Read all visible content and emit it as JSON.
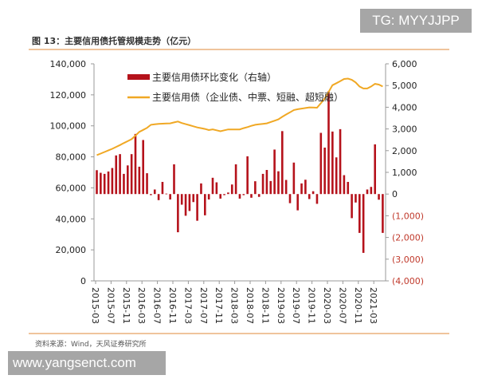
{
  "watermark_top": "TG: MYYJJPP",
  "watermark_bottom": "www.yangsenct.com",
  "source": "资料来源：Wind，天风证券研究所",
  "colors": {
    "bar": "#b5121b",
    "line": "#f0a824",
    "rule": "#e8a060",
    "negative_label": "#c0392b"
  },
  "chart_data": {
    "type": "bar+line",
    "title": "图 13：主要信用债托管规模走势（亿元）",
    "legend_placement": "top-left",
    "grid": false,
    "left_axis": {
      "ylim": [
        0,
        140000
      ],
      "ticks": [
        "0",
        "20,000",
        "40,000",
        "60,000",
        "80,000",
        "100,000",
        "120,000",
        "140,000"
      ],
      "tick_values": [
        0,
        20000,
        40000,
        60000,
        80000,
        100000,
        120000,
        140000
      ]
    },
    "right_axis": {
      "ylim": [
        -4000,
        6000
      ],
      "ticks": [
        "(4,000)",
        "(3,000)",
        "(2,000)",
        "(1,000)",
        "0",
        "1,000",
        "2,000",
        "3,000",
        "4,000",
        "5,000",
        "6,000"
      ],
      "tick_values": [
        -4000,
        -3000,
        -2000,
        -1000,
        0,
        1000,
        2000,
        3000,
        4000,
        5000,
        6000
      ]
    },
    "x_ticks": [
      "2015-03",
      "2015-07",
      "2015-11",
      "2016-03",
      "2016-07",
      "2016-11",
      "2017-03",
      "2017-07",
      "2017-11",
      "2018-03",
      "2018-07",
      "2018-11",
      "2019-03",
      "2019-07",
      "2019-11",
      "2020-03",
      "2020-07",
      "2020-11",
      "2021-03"
    ],
    "months": [
      "2015-03",
      "2015-04",
      "2015-05",
      "2015-06",
      "2015-07",
      "2015-08",
      "2015-09",
      "2015-10",
      "2015-11",
      "2015-12",
      "2016-01",
      "2016-02",
      "2016-03",
      "2016-04",
      "2016-05",
      "2016-06",
      "2016-07",
      "2016-08",
      "2016-09",
      "2016-10",
      "2016-11",
      "2016-12",
      "2017-01",
      "2017-02",
      "2017-03",
      "2017-04",
      "2017-05",
      "2017-06",
      "2017-07",
      "2017-08",
      "2017-09",
      "2017-10",
      "2017-11",
      "2017-12",
      "2018-01",
      "2018-02",
      "2018-03",
      "2018-04",
      "2018-05",
      "2018-06",
      "2018-07",
      "2018-08",
      "2018-09",
      "2018-10",
      "2018-11",
      "2018-12",
      "2019-01",
      "2019-02",
      "2019-03",
      "2019-04",
      "2019-05",
      "2019-06",
      "2019-07",
      "2019-08",
      "2019-09",
      "2019-10",
      "2019-11",
      "2019-12",
      "2020-01",
      "2020-02",
      "2020-03",
      "2020-04",
      "2020-05",
      "2020-06",
      "2020-07",
      "2020-08",
      "2020-09",
      "2020-10",
      "2020-11",
      "2020-12",
      "2021-01",
      "2021-02",
      "2021-03",
      "2021-04",
      "2021-05"
    ],
    "series": [
      {
        "name": "主要信用债环比变化（右轴）",
        "type": "bar",
        "axis": "right",
        "values": [
          1100,
          980,
          930,
          1040,
          1200,
          1780,
          1840,
          930,
          1320,
          1840,
          2770,
          1260,
          2490,
          960,
          -50,
          210,
          -280,
          560,
          20,
          -250,
          1370,
          -1760,
          -490,
          -1000,
          -780,
          -370,
          -1230,
          490,
          -980,
          -250,
          750,
          540,
          -210,
          -50,
          70,
          440,
          1370,
          -210,
          -50,
          1740,
          -170,
          590,
          -130,
          930,
          1110,
          600,
          2050,
          1050,
          2900,
          650,
          -420,
          1450,
          -750,
          490,
          660,
          -230,
          130,
          -450,
          2820,
          2140,
          4740,
          2880,
          1690,
          2990,
          870,
          560,
          -1110,
          -390,
          -1790,
          -2710,
          210,
          330,
          2290,
          -260,
          -1790
        ]
      },
      {
        "name": "主要信用债（企业债、中票、短融、超短融）",
        "type": "line",
        "axis": "left",
        "values": [
          81100,
          82100,
          83100,
          84200,
          85200,
          86400,
          87600,
          88900,
          90100,
          91400,
          93700,
          96100,
          97400,
          98700,
          100700,
          101000,
          101300,
          101400,
          101500,
          101600,
          102200,
          102800,
          101800,
          101100,
          100400,
          99700,
          99000,
          98500,
          98000,
          97300,
          97700,
          97100,
          96500,
          97100,
          97700,
          97700,
          97700,
          97700,
          98500,
          99200,
          100000,
          100700,
          101000,
          101300,
          101600,
          102500,
          103300,
          104200,
          105800,
          107300,
          108700,
          110200,
          110700,
          111100,
          111500,
          111900,
          111800,
          111700,
          114600,
          117600,
          121900,
          126200,
          127500,
          128800,
          130200,
          130500,
          129700,
          128000,
          125400,
          124100,
          124100,
          125400,
          127100,
          126600,
          125400
        ]
      }
    ]
  }
}
